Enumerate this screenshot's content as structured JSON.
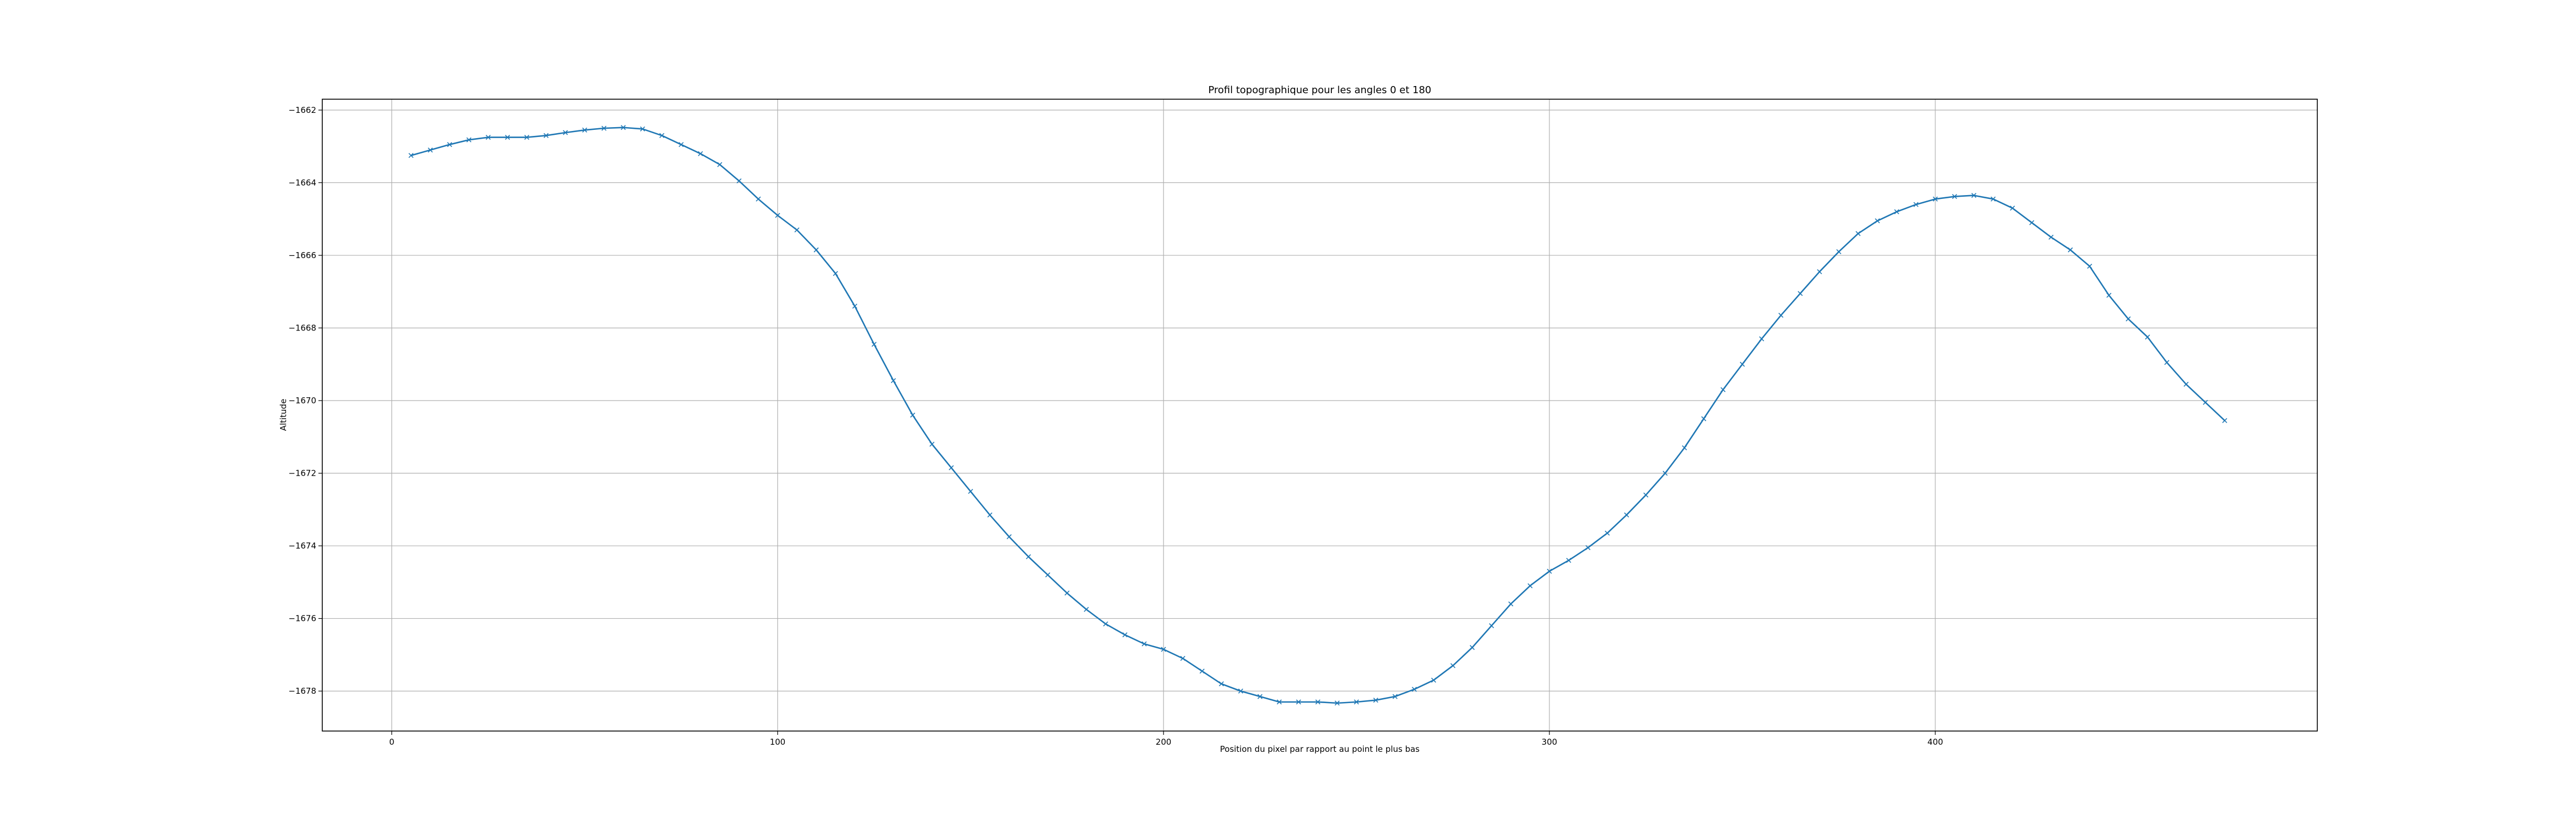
{
  "chart_data": {
    "type": "line",
    "title": "Profil topographique pour les angles 0 et 180",
    "xlabel": "Position du pixel par rapport au point le plus bas",
    "ylabel": "Altitude",
    "xlim": [
      -18,
      499
    ],
    "ylim": [
      -1679.1,
      -1661.7
    ],
    "xticks": [
      0,
      100,
      200,
      300,
      400
    ],
    "yticks": [
      -1662,
      -1664,
      -1666,
      -1668,
      -1670,
      -1672,
      -1674,
      -1676,
      -1678
    ],
    "grid": true,
    "marker": "x",
    "color": "#1f77b4",
    "series": [
      {
        "x": [
          5,
          10,
          15,
          20,
          25,
          30,
          35,
          40,
          45,
          50,
          55,
          60,
          65,
          70,
          75,
          80,
          85,
          90,
          95,
          100,
          105,
          110,
          115,
          120,
          125,
          130,
          135,
          140,
          145,
          150,
          155,
          160,
          165,
          170,
          175,
          180,
          185,
          190,
          195,
          200,
          205,
          210,
          215,
          220,
          225,
          230,
          235,
          240,
          245,
          250,
          255,
          260,
          265,
          270,
          275,
          280,
          285,
          290,
          295,
          300,
          305,
          310,
          315,
          320,
          325,
          330,
          335,
          340,
          345,
          350,
          355,
          360,
          365,
          370,
          375,
          380,
          385,
          390,
          395,
          400,
          405,
          410,
          415,
          420,
          425,
          430,
          435,
          440,
          445,
          450,
          455,
          460,
          465,
          470,
          475
        ],
        "values": [
          -1663.25,
          -1663.1,
          -1662.95,
          -1662.82,
          -1662.75,
          -1662.75,
          -1662.75,
          -1662.7,
          -1662.62,
          -1662.55,
          -1662.5,
          -1662.48,
          -1662.52,
          -1662.7,
          -1662.95,
          -1663.2,
          -1663.5,
          -1663.95,
          -1664.45,
          -1664.9,
          -1665.3,
          -1665.85,
          -1666.5,
          -1667.4,
          -1668.45,
          -1669.45,
          -1670.4,
          -1671.2,
          -1671.85,
          -1672.5,
          -1673.15,
          -1673.75,
          -1674.3,
          -1674.8,
          -1675.3,
          -1675.75,
          -1676.15,
          -1676.45,
          -1676.7,
          -1676.85,
          -1677.1,
          -1677.45,
          -1677.8,
          -1678.0,
          -1678.15,
          -1678.3,
          -1678.3,
          -1678.3,
          -1678.33,
          -1678.3,
          -1678.25,
          -1678.15,
          -1677.95,
          -1677.7,
          -1677.3,
          -1676.8,
          -1676.2,
          -1675.6,
          -1675.1,
          -1674.7,
          -1674.4,
          -1674.05,
          -1673.65,
          -1673.15,
          -1672.6,
          -1672.0,
          -1671.3,
          -1670.5,
          -1669.7,
          -1669.0,
          -1668.3,
          -1667.65,
          -1667.05,
          -1666.45,
          -1665.9,
          -1665.4,
          -1665.05,
          -1664.8,
          -1664.6,
          -1664.45,
          -1664.38,
          -1664.35,
          -1664.45,
          -1664.7,
          -1665.1,
          -1665.5,
          -1665.85,
          -1666.3,
          -1667.1,
          -1667.75,
          -1668.25,
          -1668.95,
          -1669.55,
          -1670.05,
          -1670.55
        ]
      }
    ]
  }
}
